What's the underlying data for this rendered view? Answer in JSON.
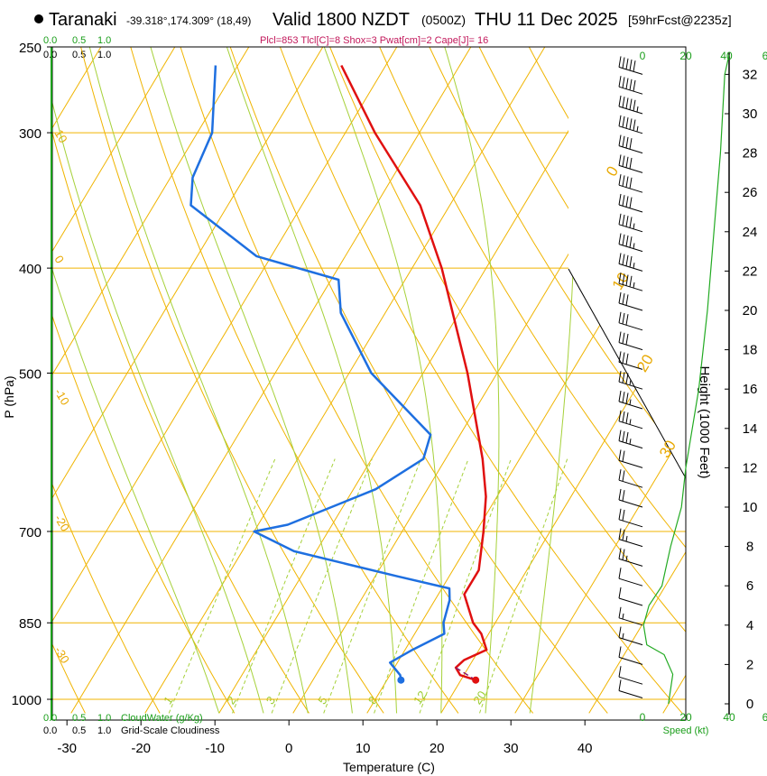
{
  "header": {
    "location": "Taranaki",
    "coords": "-39.318°,174.309° (18,49)",
    "valid": "Valid 1800 NZDT",
    "utc": "(0500Z)",
    "date": "THU 11 Dec 2025",
    "forecast": "[59hrFcst@2235z]",
    "indices": "Plcl=853 Tlcl[C]=8 Shox=3 Pwat[cm]=2 Cape[J]= 16"
  },
  "colors": {
    "temperature": "#e01010",
    "dewpoint": "#1e6fe0",
    "isotherm": "#f0b400",
    "dry_adiabat": "#f0b400",
    "moist_adiabat": "#a6d13a",
    "mixing_ratio": "#a6d13a",
    "cloud": "#22aa22",
    "wind_speed": "#22aa22",
    "parcel": "#8b1a6b"
  },
  "labels": {
    "cloud_top_0": "0.0",
    "cloud_top_05": "0.5",
    "cloud_top_1": "1.0",
    "grid_top_0": "0.0",
    "grid_top_05": "0.5",
    "grid_top_1": "1.0",
    "cloud_bot_0": "0.0",
    "cloud_bot_05": "0.5",
    "cloud_bot_1": "1.0",
    "cloudwater": "CloudWater (g/Kg)",
    "grid_bot_0": "0.0",
    "grid_bot_05": "0.5",
    "grid_bot_1": "1.0",
    "gridcloud": "Grid-Scale Cloudiness",
    "speed_label": "Speed (kt)",
    "height_label": "Height (1000 Feet)"
  },
  "chart_data": {
    "type": "line",
    "title": "Taranaki Valid 1800 NZDT (0500Z) THU 11 Dec 2025",
    "xlabel": "Temperature (C)",
    "ylabel": "P (hPa)",
    "xlim": [
      -35,
      45
    ],
    "ylim": [
      1030,
      250
    ],
    "x_ticks": [
      -30,
      -20,
      -10,
      0,
      10,
      20,
      30,
      40
    ],
    "y_ticks": [
      250,
      300,
      400,
      500,
      700,
      850,
      1000
    ],
    "isotherm_labels": [
      {
        "label": "10",
        "t": 10,
        "p": 300
      },
      {
        "label": "0",
        "t": 0,
        "p": 392
      },
      {
        "label": "-10",
        "t": -10,
        "p": 520
      },
      {
        "label": "-20",
        "t": -20,
        "p": 680
      },
      {
        "label": "-30",
        "t": -30,
        "p": 900
      }
    ],
    "isotherm_labels_right": [
      {
        "label": "0",
        "t": 0,
        "p": 330
      },
      {
        "label": "10",
        "t": 10,
        "p": 420
      },
      {
        "label": "20",
        "t": 20,
        "p": 500
      },
      {
        "label": "30",
        "t": 30,
        "p": 600
      }
    ],
    "mixing_ratio_labels": [
      "1",
      "2",
      "3",
      "5",
      "8",
      "12",
      "20"
    ],
    "temperature": [
      {
        "p": 960,
        "t": 22
      },
      {
        "p": 950,
        "t": 19.5
      },
      {
        "p": 935,
        "t": 18.3
      },
      {
        "p": 920,
        "t": 18.8
      },
      {
        "p": 900,
        "t": 21
      },
      {
        "p": 870,
        "t": 19
      },
      {
        "p": 850,
        "t": 17
      },
      {
        "p": 800,
        "t": 13.5
      },
      {
        "p": 760,
        "t": 13.5
      },
      {
        "p": 700,
        "t": 11
      },
      {
        "p": 650,
        "t": 8.5
      },
      {
        "p": 600,
        "t": 5
      },
      {
        "p": 500,
        "t": -4
      },
      {
        "p": 400,
        "t": -16
      },
      {
        "p": 350,
        "t": -24
      },
      {
        "p": 300,
        "t": -36
      },
      {
        "p": 260,
        "t": -46
      }
    ],
    "dewpoint": [
      {
        "p": 960,
        "t": 11.9
      },
      {
        "p": 950,
        "t": 11.4
      },
      {
        "p": 925,
        "t": 9
      },
      {
        "p": 900,
        "t": 11
      },
      {
        "p": 870,
        "t": 14
      },
      {
        "p": 850,
        "t": 13
      },
      {
        "p": 810,
        "t": 12
      },
      {
        "p": 790,
        "t": 11
      },
      {
        "p": 770,
        "t": 3
      },
      {
        "p": 730,
        "t": -13
      },
      {
        "p": 700,
        "t": -20
      },
      {
        "p": 690,
        "t": -16
      },
      {
        "p": 640,
        "t": -7
      },
      {
        "p": 600,
        "t": -3
      },
      {
        "p": 570,
        "t": -4
      },
      {
        "p": 500,
        "t": -17
      },
      {
        "p": 440,
        "t": -26
      },
      {
        "p": 410,
        "t": -29
      },
      {
        "p": 390,
        "t": -42
      },
      {
        "p": 350,
        "t": -55
      },
      {
        "p": 330,
        "t": -57
      },
      {
        "p": 300,
        "t": -58
      },
      {
        "p": 260,
        "t": -63
      }
    ],
    "parcel": [
      {
        "p": 960,
        "t": 22
      },
      {
        "p": 935,
        "t": 18.3
      }
    ],
    "surface": {
      "p": 960,
      "t": 22,
      "td": 11.9
    },
    "height_ticks_kft": [
      0,
      2,
      4,
      6,
      8,
      10,
      12,
      14,
      16,
      18,
      20,
      22,
      24,
      26,
      28,
      30,
      32
    ],
    "wind_speed_ticks_kt": [
      0,
      20,
      40
    ],
    "cloud_ticks": [
      0,
      2,
      4,
      6
    ],
    "cloud_axis_labels_right": [
      "0",
      "20",
      "40",
      "6"
    ],
    "wind_speed_profile": [
      {
        "kft": 0,
        "kt": 12
      },
      {
        "kft": 1.5,
        "kt": 14
      },
      {
        "kft": 2.5,
        "kt": 10
      },
      {
        "kft": 3,
        "kt": 2
      },
      {
        "kft": 4,
        "kt": 0.5
      },
      {
        "kft": 5,
        "kt": 3
      },
      {
        "kft": 6,
        "kt": 9
      },
      {
        "kft": 8,
        "kt": 13
      },
      {
        "kft": 10,
        "kt": 18
      },
      {
        "kft": 12,
        "kt": 20
      },
      {
        "kft": 14,
        "kt": 23
      },
      {
        "kft": 16,
        "kt": 26
      },
      {
        "kft": 20,
        "kt": 30
      },
      {
        "kft": 24,
        "kt": 33
      },
      {
        "kft": 28,
        "kt": 36
      },
      {
        "kft": 32,
        "kt": 38
      },
      {
        "kft": 33,
        "kt": 40
      }
    ],
    "wind_barbs": [
      {
        "kft": 0.3,
        "kt": 10
      },
      {
        "kft": 1,
        "kt": 10
      },
      {
        "kft": 2,
        "kt": 10
      },
      {
        "kft": 3,
        "kt": 5
      },
      {
        "kft": 4,
        "kt": 5
      },
      {
        "kft": 5,
        "kt": 10
      },
      {
        "kft": 6,
        "kt": 10
      },
      {
        "kft": 7,
        "kt": 15
      },
      {
        "kft": 8,
        "kt": 15
      },
      {
        "kft": 9,
        "kt": 20
      },
      {
        "kft": 10,
        "kt": 20
      },
      {
        "kft": 11,
        "kt": 20
      },
      {
        "kft": 12,
        "kt": 20
      },
      {
        "kft": 13,
        "kt": 25
      },
      {
        "kft": 14,
        "kt": 25
      },
      {
        "kft": 15,
        "kt": 25
      },
      {
        "kft": 16,
        "kt": 25
      },
      {
        "kft": 17,
        "kt": 30
      },
      {
        "kft": 18,
        "kt": 30
      },
      {
        "kft": 19,
        "kt": 30
      },
      {
        "kft": 20,
        "kt": 30
      },
      {
        "kft": 21,
        "kt": 35
      },
      {
        "kft": 22,
        "kt": 35
      },
      {
        "kft": 23,
        "kt": 35
      },
      {
        "kft": 24,
        "kt": 35
      },
      {
        "kft": 25,
        "kt": 40
      },
      {
        "kft": 26,
        "kt": 40
      },
      {
        "kft": 27,
        "kt": 40
      },
      {
        "kft": 28,
        "kt": 40
      },
      {
        "kft": 29,
        "kt": 45
      },
      {
        "kft": 30,
        "kt": 45
      },
      {
        "kft": 31,
        "kt": 50
      },
      {
        "kft": 32,
        "kt": 50
      }
    ]
  }
}
